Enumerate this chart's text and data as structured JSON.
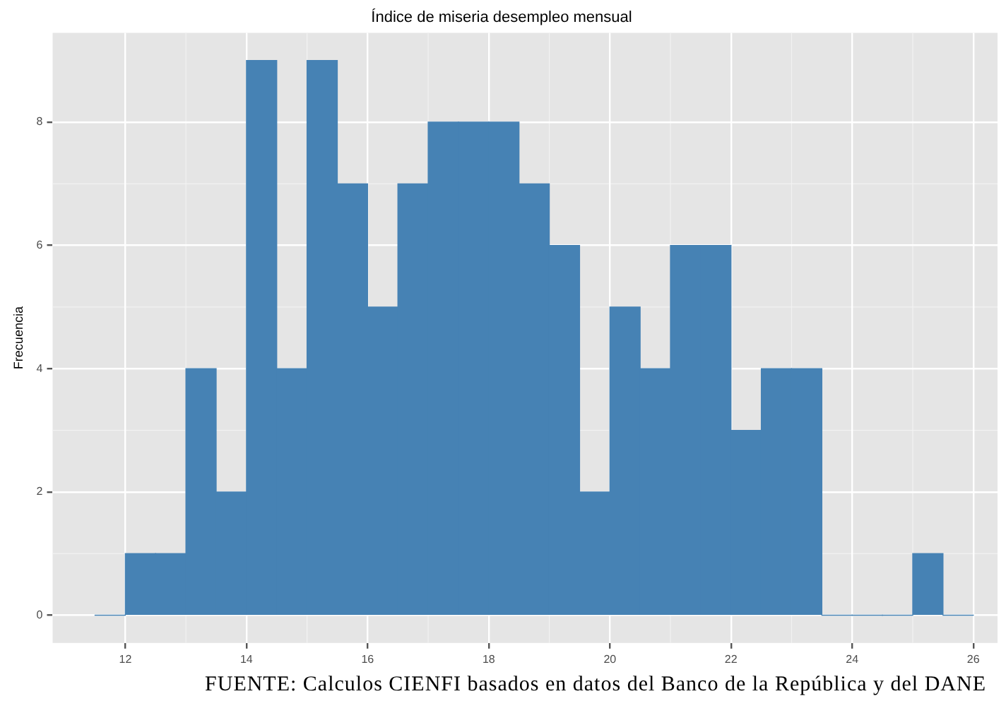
{
  "chart_data": {
    "type": "histogram",
    "title": "Índice de miseria desempleo mensual",
    "ylabel": "Frecuencia",
    "bins": [
      11.5,
      12,
      12.5,
      13,
      13.5,
      14,
      14.5,
      15,
      15.5,
      16,
      16.5,
      17,
      17.5,
      18,
      18.5,
      19,
      19.5,
      20,
      20.5,
      21,
      21.5,
      22,
      22.5,
      23,
      23.5,
      24,
      24.5,
      25,
      25.5,
      26
    ],
    "values": [
      0,
      1,
      1,
      4,
      2,
      9,
      4,
      9,
      7,
      5,
      7,
      8,
      8,
      8,
      7,
      6,
      2,
      5,
      4,
      6,
      6,
      3,
      4,
      4,
      0,
      0,
      0,
      1,
      0
    ],
    "color": "#4682b4",
    "xlim": [
      10.8,
      26.4
    ],
    "xticks": [
      12,
      14,
      16,
      18,
      20,
      22,
      24,
      26
    ],
    "ylim": [
      -0.45,
      9.45
    ],
    "yticks": [
      0,
      2,
      4,
      6,
      8
    ],
    "grid": true,
    "legend": false,
    "annotations": [
      "FUENTE: Calculos CIENFI basados en datos del Banco de la República y del DANE"
    ]
  }
}
